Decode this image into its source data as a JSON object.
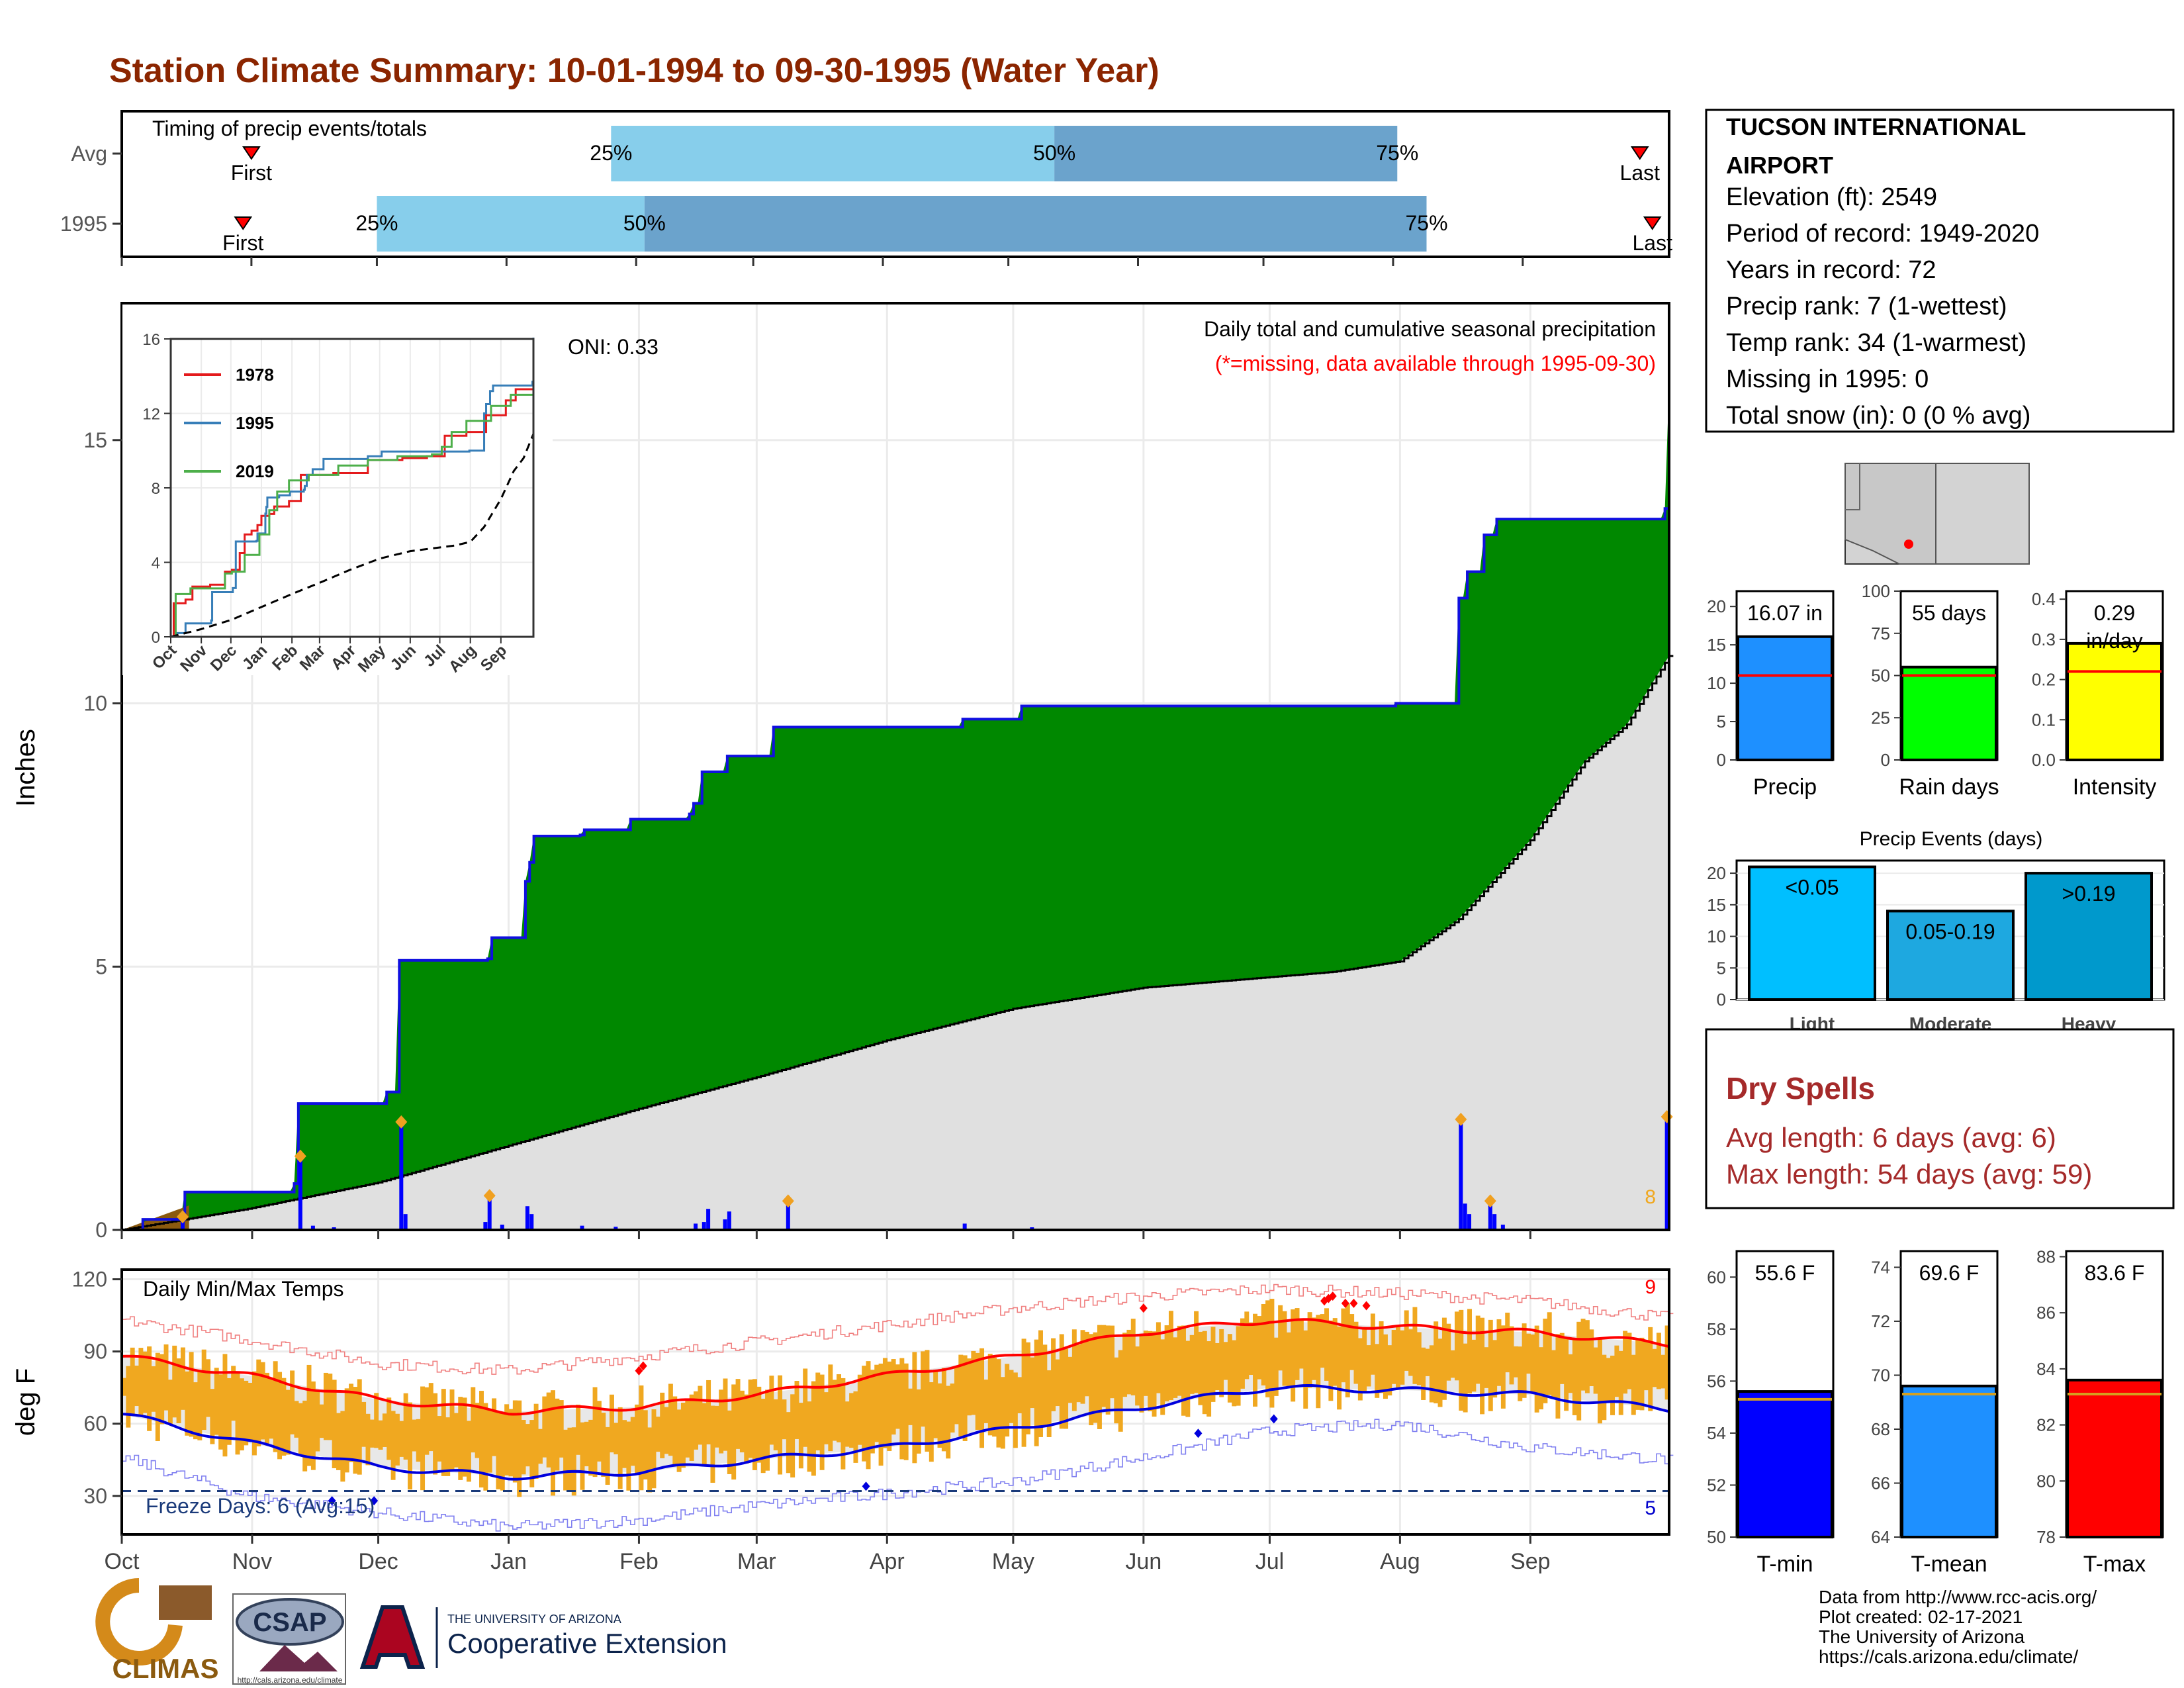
{
  "title": "Station Climate Summary: 10-01-1994 to 09-30-1995 (Water Year)",
  "colors": {
    "title": "#8B2500",
    "green": "#008800",
    "gray": "#E0E0E0",
    "brown": "#8B5A0F",
    "blue": "#0000FF",
    "light_blue": "#87CEEB",
    "mid_blue": "#6BA3CC",
    "orange": "#F0A820",
    "red": "#FF0000",
    "dry": "#A52A2A"
  },
  "timing": {
    "title": "Timing of precip events/totals",
    "rows": [
      {
        "label": "Avg",
        "first": "First",
        "last": "Last",
        "p25": "25%",
        "p50": "50%",
        "p75": "75%",
        "first_x": 31,
        "p25_x": 117,
        "p50_x": 223,
        "p75_x": 305,
        "last_x": 363
      },
      {
        "label": "1995",
        "first": "First",
        "last": "Last",
        "p25": "25%",
        "p50": "50%",
        "p75": "75%",
        "first_x": 29,
        "p25_x": 61,
        "p50_x": 125,
        "p75_x": 312,
        "last_x": 366
      }
    ]
  },
  "chart_data": [
    {
      "type": "area",
      "name": "precip",
      "title": "Daily total and cumulative seasonal precipitation",
      "subtitle": "(*=missing, data available through 1995-09-30)",
      "ylabel": "Inches",
      "ylim": [
        0,
        17.6
      ],
      "yticks": [
        0,
        5,
        10,
        15
      ],
      "xticks": [
        "Oct",
        "Nov",
        "Dec",
        "Jan",
        "Feb",
        "Mar",
        "Apr",
        "May",
        "Jun",
        "Jul",
        "Aug",
        "Sep"
      ],
      "xtick_days": [
        0,
        31,
        61,
        92,
        123,
        151,
        182,
        212,
        243,
        273,
        304,
        335
      ],
      "oni_label": "ONI: 0.33",
      "corner_note": "8",
      "cumulative_1995": [
        [
          0,
          0
        ],
        [
          5,
          0.2
        ],
        [
          15,
          0.72
        ],
        [
          41,
          0.88
        ],
        [
          42,
          2.4
        ],
        [
          63,
          2.62
        ],
        [
          66,
          5.12
        ],
        [
          87,
          5.15
        ],
        [
          88,
          5.55
        ],
        [
          96,
          6.62
        ],
        [
          97,
          6.98
        ],
        [
          98,
          7.48
        ],
        [
          109,
          7.5
        ],
        [
          110,
          7.6
        ],
        [
          121,
          7.8
        ],
        [
          135,
          7.9
        ],
        [
          136,
          8.1
        ],
        [
          138,
          8.7
        ],
        [
          144,
          9.0
        ],
        [
          155,
          9.55
        ],
        [
          200,
          9.7
        ],
        [
          214,
          9.95
        ],
        [
          303,
          10.0
        ],
        [
          318,
          12.0
        ],
        [
          320,
          12.5
        ],
        [
          324,
          13.2
        ],
        [
          327,
          13.5
        ],
        [
          367,
          13.7
        ],
        [
          368,
          16.07
        ]
      ],
      "average_cumulative": [
        [
          0,
          0
        ],
        [
          30,
          0.4
        ],
        [
          61,
          0.9
        ],
        [
          92,
          1.6
        ],
        [
          123,
          2.3
        ],
        [
          151,
          2.9
        ],
        [
          182,
          3.6
        ],
        [
          212,
          4.2
        ],
        [
          243,
          4.6
        ],
        [
          273,
          4.8
        ],
        [
          288,
          4.9
        ],
        [
          304,
          5.1
        ],
        [
          318,
          5.9
        ],
        [
          335,
          7.4
        ],
        [
          348,
          8.9
        ],
        [
          358,
          9.6
        ],
        [
          368,
          10.9
        ]
      ],
      "daily_events": [
        [
          14,
          0.25
        ],
        [
          42,
          1.4
        ],
        [
          45,
          0.08
        ],
        [
          50,
          0.05
        ],
        [
          66,
          2.05
        ],
        [
          67,
          0.3
        ],
        [
          86,
          0.15
        ],
        [
          87,
          0.6
        ],
        [
          90,
          0.1
        ],
        [
          96,
          0.45
        ],
        [
          97,
          0.3
        ],
        [
          109,
          0.08
        ],
        [
          117,
          0.06
        ],
        [
          136,
          0.12
        ],
        [
          138,
          0.15
        ],
        [
          139,
          0.4
        ],
        [
          143,
          0.2
        ],
        [
          144,
          0.35
        ],
        [
          158,
          0.55
        ],
        [
          200,
          0.12
        ],
        [
          216,
          0.05
        ],
        [
          318,
          2.1
        ],
        [
          319,
          0.5
        ],
        [
          320,
          0.3
        ],
        [
          325,
          0.55
        ],
        [
          326,
          0.3
        ],
        [
          328,
          0.1
        ],
        [
          367,
          2.15
        ]
      ],
      "ONI_markers": [
        [
          14,
          0.25
        ],
        [
          42,
          1.4
        ],
        [
          66,
          2.05
        ],
        [
          87,
          0.65
        ],
        [
          158,
          0.55
        ],
        [
          318,
          2.1
        ],
        [
          325,
          0.55
        ],
        [
          367,
          2.15
        ]
      ]
    },
    {
      "type": "line",
      "name": "inset_cumulative",
      "yticks": [
        0,
        4,
        8,
        12,
        16
      ],
      "xticks": [
        "Oct",
        "Nov",
        "Dec",
        "Jan",
        "Feb",
        "Mar",
        "Apr",
        "May",
        "Jun",
        "Jul",
        "Aug",
        "Sep"
      ],
      "series": [
        {
          "name": "1978",
          "color": "#E41A1C",
          "values": [
            [
              0,
              0
            ],
            [
              3,
              1.8
            ],
            [
              15,
              2.0
            ],
            [
              22,
              2.7
            ],
            [
              40,
              2.8
            ],
            [
              55,
              3.5
            ],
            [
              62,
              3.6
            ],
            [
              70,
              4.5
            ],
            [
              75,
              5.5
            ],
            [
              82,
              5.7
            ],
            [
              88,
              6.0
            ],
            [
              92,
              6.5
            ],
            [
              100,
              6.6
            ],
            [
              105,
              7.0
            ],
            [
              120,
              7.3
            ],
            [
              132,
              8.7
            ],
            [
              165,
              8.8
            ],
            [
              200,
              9.5
            ],
            [
              235,
              9.6
            ],
            [
              260,
              9.7
            ],
            [
              278,
              10.8
            ],
            [
              300,
              11.0
            ],
            [
              320,
              11.9
            ],
            [
              340,
              12.7
            ],
            [
              350,
              13.3
            ],
            [
              368,
              14.1
            ]
          ]
        },
        {
          "name": "1995",
          "color": "#377EB8",
          "values": [
            [
              0,
              0
            ],
            [
              5,
              0.2
            ],
            [
              15,
              0.72
            ],
            [
              41,
              0.88
            ],
            [
              42,
              2.4
            ],
            [
              63,
              2.62
            ],
            [
              66,
              5.12
            ],
            [
              87,
              5.15
            ],
            [
              88,
              5.55
            ],
            [
              96,
              6.62
            ],
            [
              97,
              6.98
            ],
            [
              98,
              7.48
            ],
            [
              109,
              7.5
            ],
            [
              110,
              7.6
            ],
            [
              121,
              7.8
            ],
            [
              135,
              7.9
            ],
            [
              136,
              8.1
            ],
            [
              138,
              8.7
            ],
            [
              144,
              9.0
            ],
            [
              155,
              9.55
            ],
            [
              200,
              9.7
            ],
            [
              214,
              9.95
            ],
            [
              303,
              10.0
            ],
            [
              318,
              12.0
            ],
            [
              320,
              12.5
            ],
            [
              324,
              13.2
            ],
            [
              327,
              13.5
            ],
            [
              367,
              13.7
            ],
            [
              368,
              16.07
            ]
          ]
        },
        {
          "name": "2019",
          "color": "#4DAF4A",
          "values": [
            [
              0,
              0
            ],
            [
              5,
              2.3
            ],
            [
              20,
              2.6
            ],
            [
              45,
              2.6
            ],
            [
              55,
              3.4
            ],
            [
              62,
              3.5
            ],
            [
              75,
              4.4
            ],
            [
              90,
              5.5
            ],
            [
              100,
              6.8
            ],
            [
              108,
              7.8
            ],
            [
              120,
              8.4
            ],
            [
              140,
              8.7
            ],
            [
              170,
              9.2
            ],
            [
              200,
              9.5
            ],
            [
              230,
              9.7
            ],
            [
              265,
              9.8
            ],
            [
              275,
              10.2
            ],
            [
              285,
              11.0
            ],
            [
              300,
              11.6
            ],
            [
              325,
              12.4
            ],
            [
              345,
              13.0
            ],
            [
              368,
              14.3
            ]
          ]
        },
        {
          "name": "",
          "color": "#000000",
          "values": [
            [
              0,
              0
            ],
            [
              30,
              0.4
            ],
            [
              61,
              0.9
            ],
            [
              92,
              1.6
            ],
            [
              123,
              2.3
            ],
            [
              151,
              2.9
            ],
            [
              182,
              3.6
            ],
            [
              212,
              4.2
            ],
            [
              243,
              4.6
            ],
            [
              273,
              4.8
            ],
            [
              288,
              4.9
            ],
            [
              304,
              5.1
            ],
            [
              318,
              5.9
            ],
            [
              335,
              7.4
            ],
            [
              348,
              8.9
            ],
            [
              358,
              9.6
            ],
            [
              368,
              10.9
            ]
          ]
        }
      ]
    },
    {
      "type": "line",
      "name": "temperature",
      "title": "Daily Min/Max Temps",
      "ylabel": "deg F",
      "ylim": [
        14,
        124
      ],
      "yticks": [
        30,
        60,
        90,
        120
      ],
      "xticks": [
        "Oct",
        "Nov",
        "Dec",
        "Jan",
        "Feb",
        "Mar",
        "Apr",
        "May",
        "Jun",
        "Jul",
        "Aug",
        "Sep"
      ],
      "freeze_line": 32,
      "freeze_label": "Freeze Days: 6 (Avg:15)",
      "high_note": "9",
      "low_note": "5",
      "avg_max": [
        [
          0,
          88
        ],
        [
          30,
          80
        ],
        [
          61,
          70
        ],
        [
          92,
          65
        ],
        [
          123,
          67
        ],
        [
          151,
          72
        ],
        [
          182,
          80
        ],
        [
          212,
          88
        ],
        [
          243,
          98
        ],
        [
          273,
          103
        ],
        [
          304,
          100
        ],
        [
          335,
          98
        ],
        [
          368,
          93
        ]
      ],
      "avg_min": [
        [
          0,
          64
        ],
        [
          30,
          52
        ],
        [
          61,
          42
        ],
        [
          92,
          38
        ],
        [
          123,
          40
        ],
        [
          151,
          45
        ],
        [
          182,
          50
        ],
        [
          212,
          58
        ],
        [
          243,
          67
        ],
        [
          273,
          75
        ],
        [
          304,
          74
        ],
        [
          335,
          72
        ],
        [
          368,
          66
        ]
      ],
      "record_max": [
        [
          0,
          103
        ],
        [
          30,
          95
        ],
        [
          61,
          85
        ],
        [
          92,
          82
        ],
        [
          123,
          88
        ],
        [
          151,
          94
        ],
        [
          182,
          101
        ],
        [
          212,
          108
        ],
        [
          243,
          113
        ],
        [
          273,
          116
        ],
        [
          304,
          114
        ],
        [
          335,
          111
        ],
        [
          368,
          104
        ]
      ],
      "record_min": [
        [
          0,
          46
        ],
        [
          30,
          30
        ],
        [
          61,
          23
        ],
        [
          92,
          17
        ],
        [
          123,
          20
        ],
        [
          151,
          26
        ],
        [
          182,
          31
        ],
        [
          212,
          36
        ],
        [
          243,
          46
        ],
        [
          273,
          57
        ],
        [
          304,
          60
        ],
        [
          335,
          50
        ],
        [
          368,
          45
        ]
      ]
    },
    {
      "type": "bar",
      "name": "precip_summary",
      "categories": [
        "Precip",
        "Rain days",
        "Intensity"
      ],
      "values": [
        16.07,
        55,
        0.29
      ],
      "averages": [
        11,
        50,
        0.22
      ],
      "value_labels": [
        "16.07 in",
        "55 days",
        "0.29 in/day"
      ],
      "ylims": [
        [
          0,
          22
        ],
        [
          0,
          100
        ],
        [
          0,
          0.42
        ]
      ],
      "yticks": [
        [
          0,
          5,
          10,
          15,
          20
        ],
        [
          0,
          25,
          50,
          75,
          100
        ],
        [
          0.0,
          0.1,
          0.2,
          0.3,
          0.4
        ]
      ],
      "colors": [
        "#1E90FF",
        "#00FF00",
        "#FFFF00"
      ]
    },
    {
      "type": "bar",
      "name": "precip_events",
      "title": "Precip Events (days)",
      "categories": [
        "Light",
        "Moderate",
        "Heavy"
      ],
      "values": [
        21,
        14,
        20
      ],
      "value_labels": [
        "<0.05",
        "0.05-0.19",
        ">0.19"
      ],
      "ylim": [
        0,
        22
      ],
      "yticks": [
        0,
        5,
        10,
        15,
        20
      ],
      "colors": [
        "#00BFFF",
        "#1EA8E0",
        "#0099CC"
      ]
    },
    {
      "type": "bar",
      "name": "temp_summary",
      "categories": [
        "T-min",
        "T-mean",
        "T-max"
      ],
      "values": [
        55.6,
        69.6,
        83.6
      ],
      "averages": [
        55.3,
        69.3,
        83.1
      ],
      "value_labels": [
        "55.6 F",
        "69.6 F",
        "83.6 F"
      ],
      "ylims": [
        [
          50,
          61
        ],
        [
          64,
          74.6
        ],
        [
          78,
          88.2
        ]
      ],
      "yticks": [
        [
          50,
          52,
          54,
          56,
          58,
          60
        ],
        [
          64,
          66,
          68,
          70,
          72,
          74
        ],
        [
          78,
          80,
          82,
          84,
          86,
          88
        ]
      ],
      "colors": [
        "#0000FF",
        "#1E90FF",
        "#FF0000"
      ]
    }
  ],
  "station": {
    "name_line1": "TUCSON INTERNATIONAL",
    "name_line2": "AIRPORT",
    "lines": [
      "Elevation (ft): 2549",
      "Period of record: 1949-2020",
      "Years in record: 72",
      "Precip rank: 7 (1-wettest)",
      "Temp rank: 34 (1-warmest)",
      "Missing in 1995: 0",
      "Total snow (in): 0 (0 % avg)"
    ]
  },
  "dry_spells": {
    "title": "Dry Spells",
    "avg": "Avg length: 6 days (avg: 6)",
    "max": "Max length: 54 days (avg: 59)"
  },
  "footer": {
    "logo_climas": "CLIMAS",
    "logo_csap": "CSAP",
    "csap_url": "http://cals.arizona.edu/climate",
    "ua_small": "THE UNIVERSITY OF ARIZONA",
    "ua_big": "Cooperative Extension",
    "credits": [
      "Data from http://www.rcc-acis.org/",
      "Plot created: 02-17-2021",
      "The University of Arizona",
      "https://cals.arizona.edu/climate/"
    ]
  }
}
